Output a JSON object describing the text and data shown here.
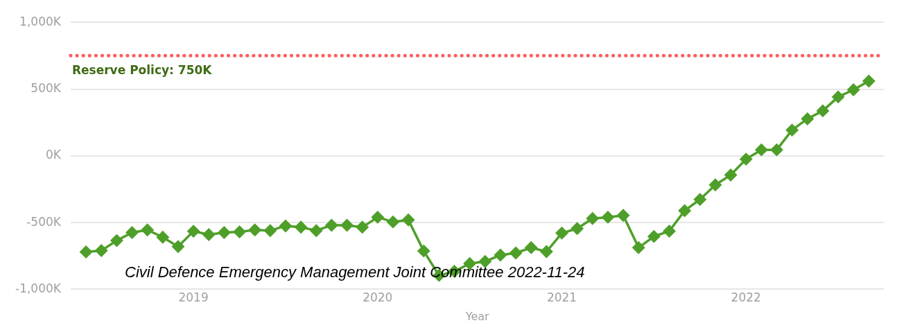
{
  "chart_data": {
    "type": "line",
    "xlabel": "Year",
    "x": [
      "2018-06",
      "2018-07",
      "2018-08",
      "2018-09",
      "2018-10",
      "2018-11",
      "2018-12",
      "2019-01",
      "2019-02",
      "2019-03",
      "2019-04",
      "2019-05",
      "2019-06",
      "2019-07",
      "2019-08",
      "2019-09",
      "2019-10",
      "2019-11",
      "2019-12",
      "2020-01",
      "2020-02",
      "2020-03",
      "2020-04",
      "2020-05",
      "2020-06",
      "2020-07",
      "2020-08",
      "2020-09",
      "2020-10",
      "2020-11",
      "2020-12",
      "2021-01",
      "2021-02",
      "2021-03",
      "2021-04",
      "2021-05",
      "2021-06",
      "2021-07",
      "2021-08",
      "2021-09",
      "2021-10",
      "2021-11",
      "2021-12",
      "2022-01",
      "2022-02",
      "2022-03",
      "2022-04",
      "2022-05",
      "2022-06",
      "2022-07",
      "2022-08",
      "2022-09"
    ],
    "series": [
      {
        "color": "#4e9f29",
        "values": [
          -720,
          -710,
          -635,
          -575,
          -555,
          -610,
          -680,
          -565,
          -590,
          -575,
          -570,
          -555,
          -560,
          -525,
          -535,
          -560,
          -520,
          -520,
          -535,
          -460,
          -495,
          -480,
          -713,
          -896,
          -866,
          -807,
          -792,
          -743,
          -728,
          -688,
          -718,
          -579,
          -545,
          -470,
          -460,
          -446,
          -688,
          -604,
          -564,
          -411,
          -327,
          -218,
          -144,
          -25,
          45,
          45,
          193,
          277,
          337,
          441,
          495,
          560
        ]
      }
    ],
    "xlim": [
      "2018-05",
      "2022-10"
    ],
    "xticks": [
      "2019",
      "2020",
      "2021",
      "2022"
    ],
    "ylim": [
      -1000,
      1000
    ],
    "yticks": [
      {
        "value": -1000,
        "label": "-1,000K"
      },
      {
        "value": -500,
        "label": "-500K"
      },
      {
        "value": 0,
        "label": "0K"
      },
      {
        "value": 500,
        "label": "500K"
      },
      {
        "value": 1000,
        "label": "1,000K"
      }
    ],
    "ref_lines": [
      {
        "axis": "y",
        "value": 750,
        "label": "Reserve Policy: 750K",
        "color": "#ff5a5a",
        "line_style": "dotted"
      }
    ],
    "annotations": [
      "Civil Defence Emergency Management Joint Committee 2022-11-24"
    ],
    "grid": "y",
    "legend": false,
    "marker": "diamond",
    "line_style": "solid"
  }
}
